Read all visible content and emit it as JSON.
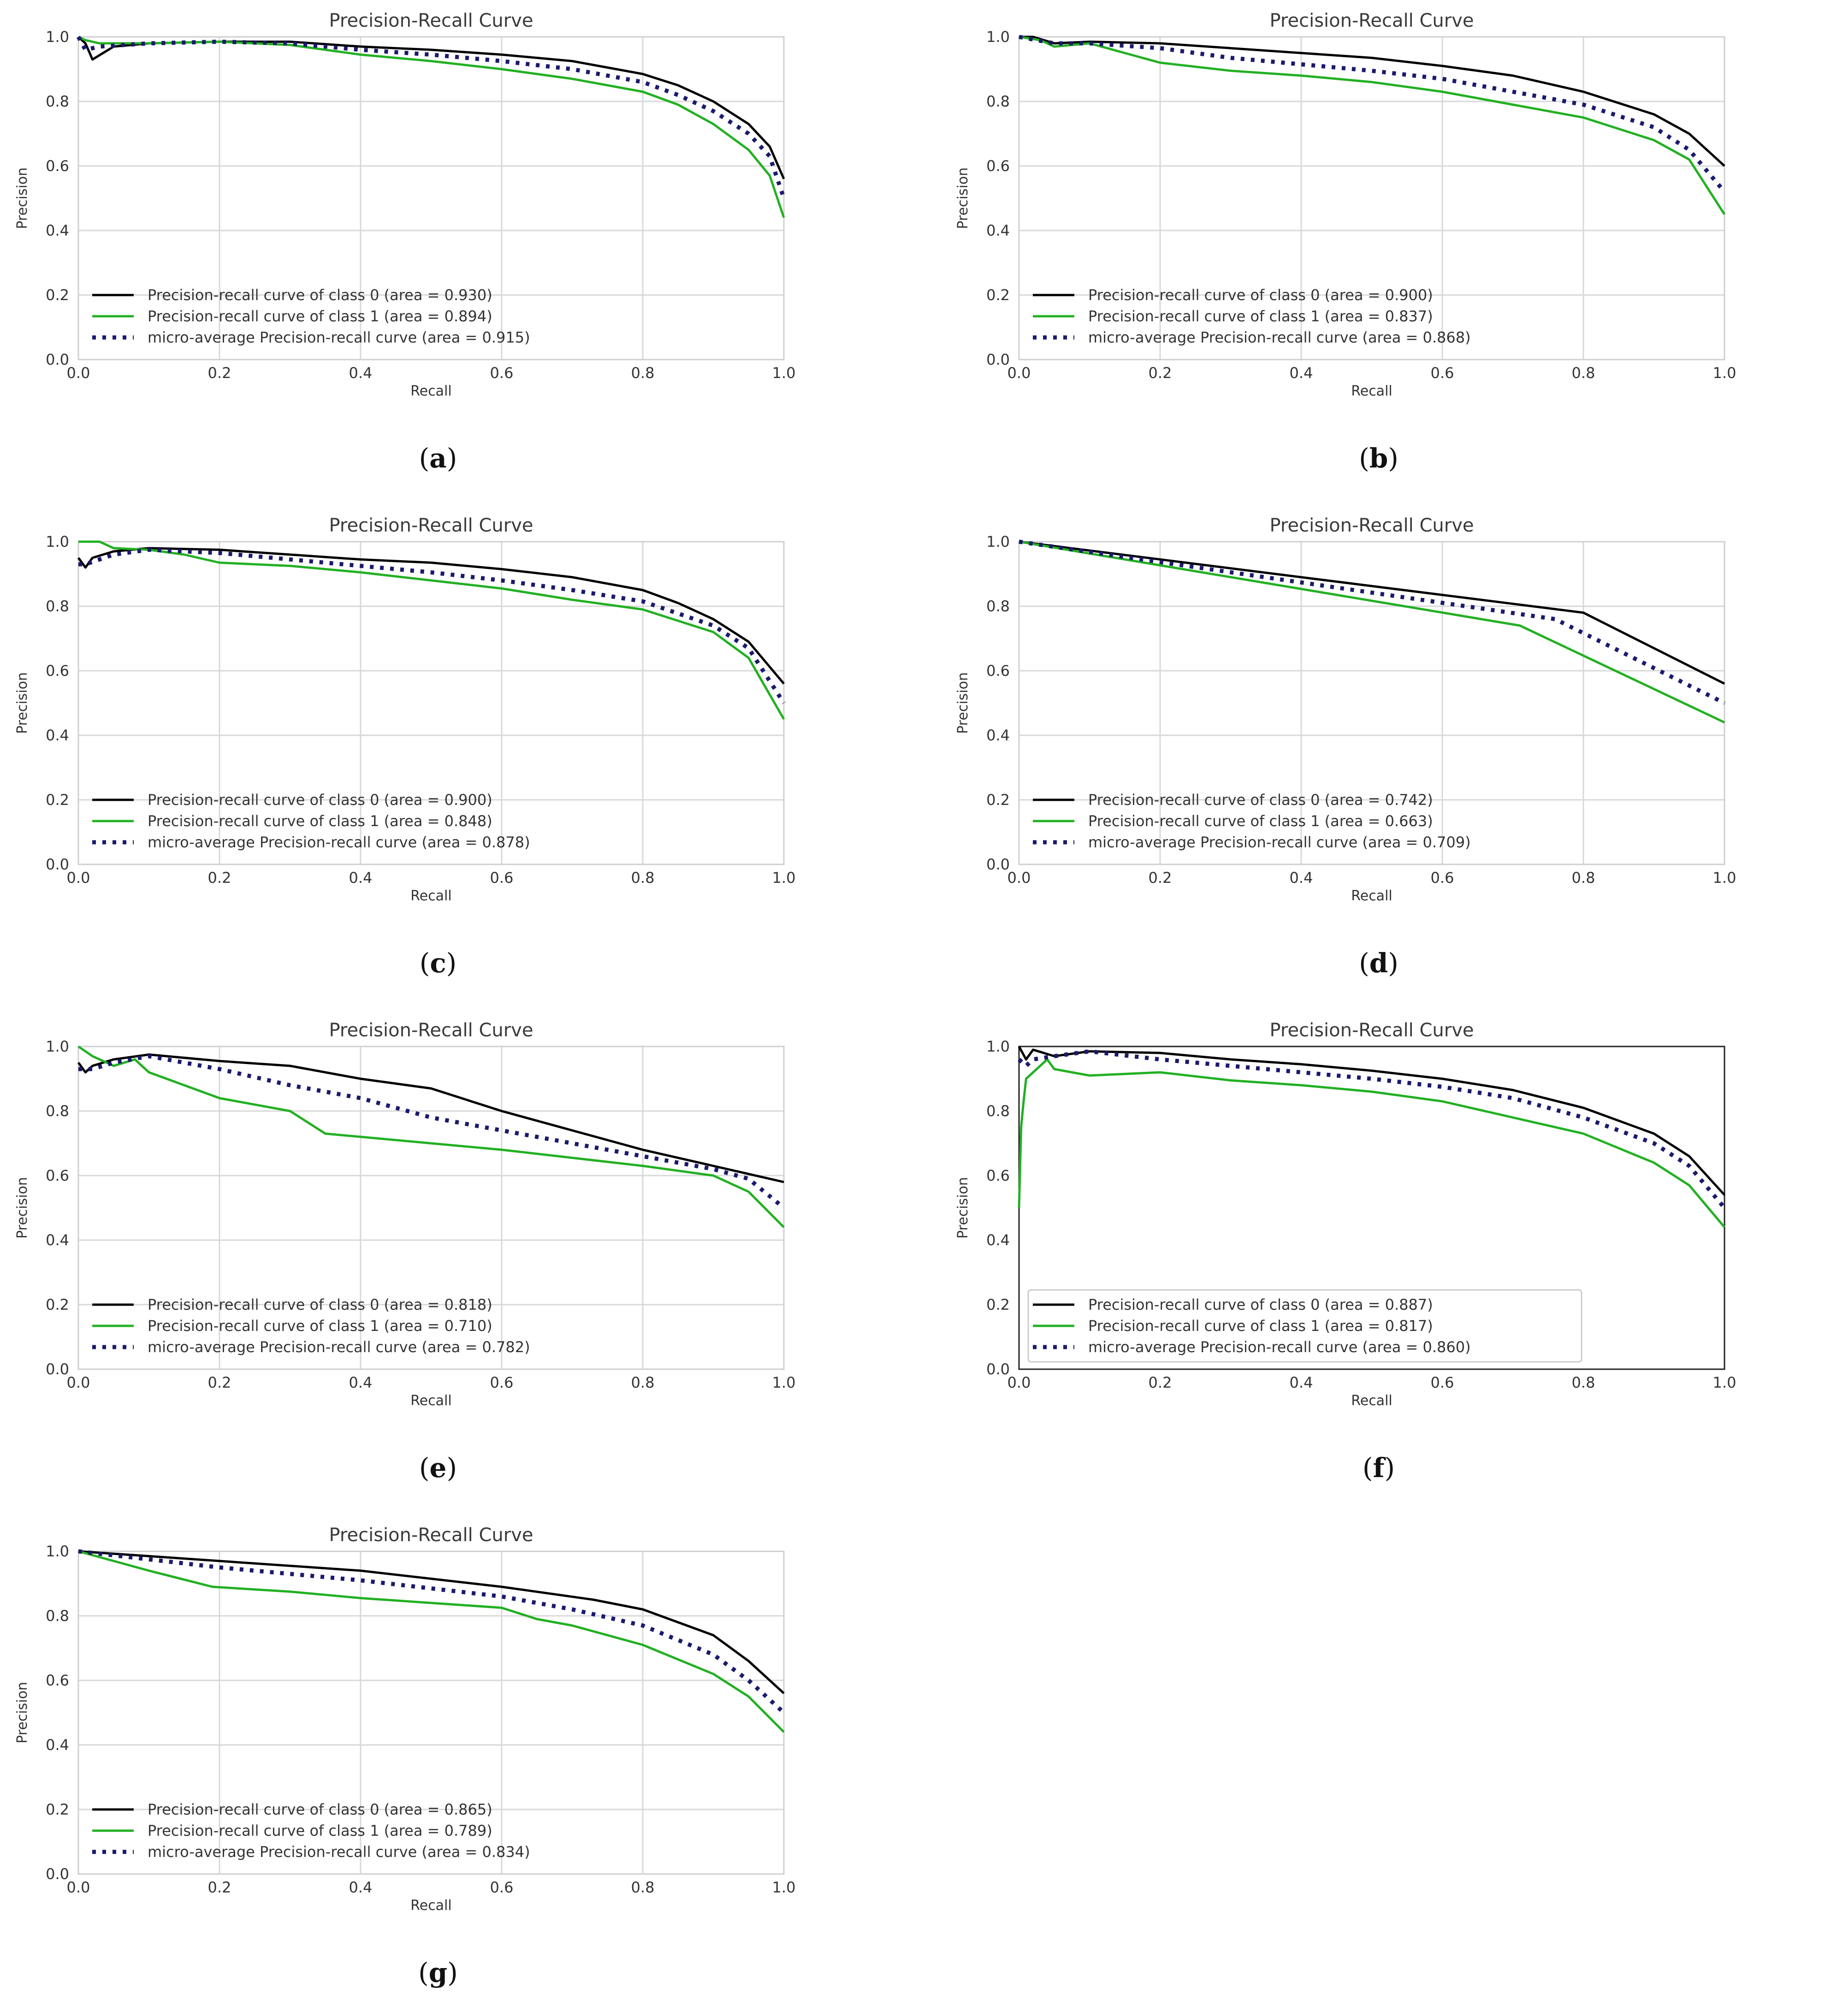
{
  "figure": {
    "colors": {
      "class0": "#000000",
      "class1": "#22b022",
      "micro": "#1a1a6e",
      "grid": "#d8d8d8"
    },
    "panel_labels": [
      "a",
      "b",
      "c",
      "d",
      "e",
      "f",
      "g"
    ]
  },
  "chart_data": [
    {
      "id": "a",
      "type": "line",
      "title": "Precision-Recall Curve",
      "xlabel": "Recall",
      "ylabel": "Precision",
      "xlim": [
        0,
        1
      ],
      "ylim": [
        0,
        1
      ],
      "xticks": [
        "0.0",
        "0.2",
        "0.4",
        "0.6",
        "0.8",
        "1.0"
      ],
      "yticks": [
        "0.0",
        "0.2",
        "0.4",
        "0.6",
        "0.8",
        "1.0"
      ],
      "grid": true,
      "legend_position": "lower-left",
      "series": [
        {
          "name": "Precision-recall curve of class 0 (area = 0.930)",
          "style": "solid",
          "color": "#000000",
          "x": [
            0,
            0.01,
            0.02,
            0.05,
            0.1,
            0.2,
            0.3,
            0.4,
            0.5,
            0.6,
            0.7,
            0.8,
            0.85,
            0.9,
            0.95,
            0.98,
            1.0
          ],
          "y": [
            1.0,
            0.98,
            0.93,
            0.97,
            0.98,
            0.985,
            0.985,
            0.97,
            0.96,
            0.945,
            0.925,
            0.885,
            0.85,
            0.8,
            0.73,
            0.66,
            0.56
          ]
        },
        {
          "name": "Precision-recall curve of class 1 (area = 0.894)",
          "style": "solid",
          "color": "#22b022",
          "x": [
            0,
            0.01,
            0.03,
            0.1,
            0.2,
            0.3,
            0.4,
            0.5,
            0.6,
            0.7,
            0.8,
            0.85,
            0.9,
            0.95,
            0.98,
            1.0
          ],
          "y": [
            1.0,
            0.99,
            0.98,
            0.98,
            0.985,
            0.975,
            0.945,
            0.925,
            0.9,
            0.87,
            0.83,
            0.79,
            0.73,
            0.65,
            0.57,
            0.44
          ]
        },
        {
          "name": "micro-average Precision-recall curve (area = 0.915)",
          "style": "dotted",
          "color": "#1a1a6e",
          "x": [
            0,
            0.01,
            0.03,
            0.1,
            0.2,
            0.3,
            0.4,
            0.5,
            0.6,
            0.7,
            0.8,
            0.85,
            0.9,
            0.95,
            0.98,
            1.0
          ],
          "y": [
            1.0,
            0.96,
            0.97,
            0.98,
            0.985,
            0.98,
            0.96,
            0.945,
            0.925,
            0.9,
            0.86,
            0.82,
            0.77,
            0.7,
            0.63,
            0.5
          ]
        }
      ]
    },
    {
      "id": "b",
      "type": "line",
      "title": "Precision-Recall Curve",
      "xlabel": "Recall",
      "ylabel": "Precision",
      "xlim": [
        0,
        1
      ],
      "ylim": [
        0,
        1
      ],
      "xticks": [
        "0.0",
        "0.2",
        "0.4",
        "0.6",
        "0.8",
        "1.0"
      ],
      "yticks": [
        "0.0",
        "0.2",
        "0.4",
        "0.6",
        "0.8",
        "1.0"
      ],
      "grid": true,
      "legend_position": "lower-left",
      "series": [
        {
          "name": "Precision-recall curve of class 0 (area = 0.900)",
          "style": "solid",
          "color": "#000000",
          "x": [
            0,
            0.02,
            0.05,
            0.1,
            0.2,
            0.3,
            0.4,
            0.5,
            0.6,
            0.7,
            0.8,
            0.9,
            0.95,
            1.0
          ],
          "y": [
            1.0,
            1.0,
            0.98,
            0.985,
            0.98,
            0.965,
            0.95,
            0.935,
            0.91,
            0.88,
            0.83,
            0.76,
            0.7,
            0.6
          ]
        },
        {
          "name": "Precision-recall curve of class 1 (area = 0.837)",
          "style": "solid",
          "color": "#22b022",
          "x": [
            0,
            0.03,
            0.05,
            0.1,
            0.15,
            0.2,
            0.3,
            0.4,
            0.5,
            0.6,
            0.7,
            0.8,
            0.9,
            0.95,
            1.0
          ],
          "y": [
            1.0,
            0.99,
            0.97,
            0.98,
            0.95,
            0.92,
            0.895,
            0.88,
            0.86,
            0.83,
            0.79,
            0.75,
            0.68,
            0.62,
            0.45
          ]
        },
        {
          "name": "micro-average Precision-recall curve (area = 0.868)",
          "style": "dotted",
          "color": "#1a1a6e",
          "x": [
            0,
            0.05,
            0.1,
            0.2,
            0.3,
            0.4,
            0.5,
            0.6,
            0.7,
            0.8,
            0.9,
            0.95,
            1.0
          ],
          "y": [
            1.0,
            0.98,
            0.98,
            0.965,
            0.935,
            0.915,
            0.895,
            0.87,
            0.83,
            0.79,
            0.72,
            0.65,
            0.52
          ]
        }
      ]
    },
    {
      "id": "c",
      "type": "line",
      "title": "Precision-Recall Curve",
      "xlabel": "Recall",
      "ylabel": "Precision",
      "xlim": [
        0,
        1
      ],
      "ylim": [
        0,
        1
      ],
      "xticks": [
        "0.0",
        "0.2",
        "0.4",
        "0.6",
        "0.8",
        "1.0"
      ],
      "yticks": [
        "0.0",
        "0.2",
        "0.4",
        "0.6",
        "0.8",
        "1.0"
      ],
      "grid": true,
      "legend_position": "lower-left",
      "series": [
        {
          "name": "Precision-recall curve of class 0 (area = 0.900)",
          "style": "solid",
          "color": "#000000",
          "x": [
            0,
            0.01,
            0.02,
            0.05,
            0.1,
            0.2,
            0.3,
            0.4,
            0.5,
            0.6,
            0.7,
            0.8,
            0.85,
            0.9,
            0.95,
            1.0
          ],
          "y": [
            0.95,
            0.92,
            0.95,
            0.97,
            0.98,
            0.975,
            0.96,
            0.945,
            0.935,
            0.915,
            0.89,
            0.85,
            0.81,
            0.76,
            0.69,
            0.56
          ]
        },
        {
          "name": "Precision-recall curve of class 1 (area = 0.848)",
          "style": "solid",
          "color": "#22b022",
          "x": [
            0,
            0.03,
            0.05,
            0.1,
            0.15,
            0.2,
            0.3,
            0.4,
            0.5,
            0.6,
            0.7,
            0.8,
            0.9,
            0.95,
            1.0
          ],
          "y": [
            1.0,
            1.0,
            0.98,
            0.975,
            0.96,
            0.935,
            0.925,
            0.905,
            0.88,
            0.855,
            0.82,
            0.79,
            0.72,
            0.64,
            0.45
          ]
        },
        {
          "name": "micro-average Precision-recall curve (area = 0.878)",
          "style": "dotted",
          "color": "#1a1a6e",
          "x": [
            0,
            0.01,
            0.05,
            0.1,
            0.2,
            0.3,
            0.4,
            0.5,
            0.6,
            0.7,
            0.8,
            0.9,
            0.95,
            1.0
          ],
          "y": [
            0.93,
            0.93,
            0.96,
            0.975,
            0.965,
            0.945,
            0.925,
            0.905,
            0.88,
            0.85,
            0.815,
            0.74,
            0.67,
            0.5
          ]
        }
      ]
    },
    {
      "id": "d",
      "type": "line",
      "title": "Precision-Recall Curve",
      "xlabel": "Recall",
      "ylabel": "Precision",
      "xlim": [
        0,
        1
      ],
      "ylim": [
        0,
        1
      ],
      "xticks": [
        "0.0",
        "0.2",
        "0.4",
        "0.6",
        "0.8",
        "1.0"
      ],
      "yticks": [
        "0.0",
        "0.2",
        "0.4",
        "0.6",
        "0.8",
        "1.0"
      ],
      "grid": true,
      "legend_position": "lower-left",
      "series": [
        {
          "name": "Precision-recall curve of class 0 (area = 0.742)",
          "style": "solid",
          "color": "#000000",
          "x": [
            0,
            0.8,
            1.0
          ],
          "y": [
            1.0,
            0.78,
            0.56
          ]
        },
        {
          "name": "Precision-recall curve of class 1 (area = 0.663)",
          "style": "solid",
          "color": "#22b022",
          "x": [
            0,
            0.71,
            1.0
          ],
          "y": [
            1.0,
            0.74,
            0.44
          ]
        },
        {
          "name": "micro-average Precision-recall curve (area = 0.709)",
          "style": "dotted",
          "color": "#1a1a6e",
          "x": [
            0,
            0.76,
            1.0
          ],
          "y": [
            1.0,
            0.76,
            0.5
          ]
        }
      ]
    },
    {
      "id": "e",
      "type": "line",
      "title": "Precision-Recall Curve",
      "xlabel": "Recall",
      "ylabel": "Precision",
      "xlim": [
        0,
        1
      ],
      "ylim": [
        0,
        1
      ],
      "xticks": [
        "0.0",
        "0.2",
        "0.4",
        "0.6",
        "0.8",
        "1.0"
      ],
      "yticks": [
        "0.0",
        "0.2",
        "0.4",
        "0.6",
        "0.8",
        "1.0"
      ],
      "grid": true,
      "legend_position": "lower-left",
      "series": [
        {
          "name": "Precision-recall curve of class 0 (area = 0.818)",
          "style": "solid",
          "color": "#000000",
          "x": [
            0,
            0.01,
            0.02,
            0.05,
            0.1,
            0.2,
            0.3,
            0.4,
            0.5,
            0.6,
            0.7,
            0.8,
            0.9,
            1.0
          ],
          "y": [
            0.95,
            0.92,
            0.94,
            0.96,
            0.975,
            0.955,
            0.94,
            0.9,
            0.87,
            0.8,
            0.74,
            0.68,
            0.63,
            0.58
          ]
        },
        {
          "name": "Precision-recall curve of class 1 (area = 0.710)",
          "style": "solid",
          "color": "#22b022",
          "x": [
            0,
            0.02,
            0.05,
            0.08,
            0.1,
            0.15,
            0.2,
            0.3,
            0.35,
            0.5,
            0.6,
            0.7,
            0.8,
            0.9,
            0.95,
            1.0
          ],
          "y": [
            1.0,
            0.97,
            0.94,
            0.96,
            0.92,
            0.88,
            0.84,
            0.8,
            0.73,
            0.7,
            0.68,
            0.655,
            0.63,
            0.6,
            0.55,
            0.44
          ]
        },
        {
          "name": "micro-average Precision-recall curve (area = 0.782)",
          "style": "dotted",
          "color": "#1a1a6e",
          "x": [
            0,
            0.02,
            0.05,
            0.1,
            0.2,
            0.3,
            0.4,
            0.5,
            0.6,
            0.7,
            0.8,
            0.9,
            0.95,
            1.0
          ],
          "y": [
            0.93,
            0.93,
            0.95,
            0.97,
            0.93,
            0.88,
            0.84,
            0.78,
            0.74,
            0.7,
            0.66,
            0.62,
            0.59,
            0.5
          ]
        }
      ]
    },
    {
      "id": "f",
      "type": "line",
      "title": "Precision-Recall Curve",
      "xlabel": "Recall",
      "ylabel": "Precision",
      "xlim": [
        0,
        1
      ],
      "ylim": [
        0,
        1
      ],
      "xticks": [
        "0.0",
        "0.2",
        "0.4",
        "0.6",
        "0.8",
        "1.0"
      ],
      "yticks": [
        "0.0",
        "0.2",
        "0.4",
        "0.6",
        "0.8",
        "1.0"
      ],
      "grid": false,
      "legend_position": "lower-left",
      "series": [
        {
          "name": "Precision-recall curve of class 0 (area = 0.887)",
          "style": "solid",
          "color": "#000000",
          "x": [
            0,
            0.01,
            0.02,
            0.05,
            0.1,
            0.2,
            0.3,
            0.4,
            0.5,
            0.6,
            0.7,
            0.8,
            0.9,
            0.95,
            1.0
          ],
          "y": [
            1.0,
            0.96,
            0.99,
            0.97,
            0.985,
            0.98,
            0.96,
            0.945,
            0.925,
            0.9,
            0.865,
            0.81,
            0.73,
            0.66,
            0.54
          ]
        },
        {
          "name": "Precision-recall curve of class 1 (area = 0.817)",
          "style": "solid",
          "color": "#22b022",
          "x": [
            0,
            0.003,
            0.006,
            0.01,
            0.02,
            0.04,
            0.05,
            0.1,
            0.2,
            0.3,
            0.4,
            0.5,
            0.6,
            0.7,
            0.8,
            0.9,
            0.95,
            1.0
          ],
          "y": [
            0.5,
            0.75,
            0.82,
            0.9,
            0.92,
            0.96,
            0.93,
            0.91,
            0.92,
            0.895,
            0.88,
            0.86,
            0.83,
            0.78,
            0.73,
            0.64,
            0.57,
            0.44
          ]
        },
        {
          "name": "micro-average Precision-recall curve (area = 0.860)",
          "style": "dotted",
          "color": "#1a1a6e",
          "x": [
            0,
            0.01,
            0.02,
            0.05,
            0.1,
            0.2,
            0.3,
            0.4,
            0.5,
            0.6,
            0.7,
            0.8,
            0.9,
            0.95,
            1.0
          ],
          "y": [
            0.96,
            0.94,
            0.96,
            0.97,
            0.985,
            0.96,
            0.94,
            0.92,
            0.9,
            0.875,
            0.84,
            0.78,
            0.7,
            0.63,
            0.5
          ]
        }
      ]
    },
    {
      "id": "g",
      "type": "line",
      "title": "Precision-Recall Curve",
      "xlabel": "Recall",
      "ylabel": "Precision",
      "xlim": [
        0,
        1
      ],
      "ylim": [
        0,
        1
      ],
      "xticks": [
        "0.0",
        "0.2",
        "0.4",
        "0.6",
        "0.8",
        "1.0"
      ],
      "yticks": [
        "0.0",
        "0.2",
        "0.4",
        "0.6",
        "0.8",
        "1.0"
      ],
      "grid": true,
      "legend_position": "lower-left",
      "series": [
        {
          "name": "Precision-recall curve of class 0 (area = 0.865)",
          "style": "solid",
          "color": "#000000",
          "x": [
            0,
            0.2,
            0.4,
            0.6,
            0.73,
            0.8,
            0.9,
            0.95,
            1.0
          ],
          "y": [
            1.0,
            0.97,
            0.94,
            0.89,
            0.85,
            0.82,
            0.74,
            0.66,
            0.56
          ]
        },
        {
          "name": "Precision-recall curve of class 1 (area = 0.789)",
          "style": "solid",
          "color": "#22b022",
          "x": [
            0,
            0.1,
            0.19,
            0.3,
            0.4,
            0.5,
            0.6,
            0.65,
            0.7,
            0.8,
            0.9,
            0.95,
            1.0
          ],
          "y": [
            1.0,
            0.94,
            0.89,
            0.875,
            0.855,
            0.84,
            0.825,
            0.79,
            0.77,
            0.71,
            0.62,
            0.55,
            0.44
          ]
        },
        {
          "name": "micro-average Precision-recall curve (area = 0.834)",
          "style": "dotted",
          "color": "#1a1a6e",
          "x": [
            0,
            0.2,
            0.4,
            0.6,
            0.7,
            0.8,
            0.9,
            0.95,
            1.0
          ],
          "y": [
            1.0,
            0.95,
            0.91,
            0.86,
            0.82,
            0.77,
            0.68,
            0.6,
            0.5
          ]
        }
      ]
    }
  ]
}
